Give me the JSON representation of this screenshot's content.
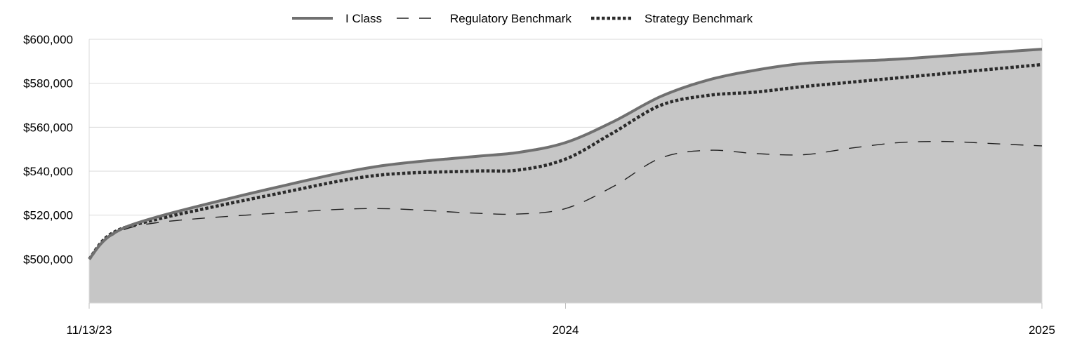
{
  "chart_data": {
    "type": "area",
    "title": "",
    "xlabel": "",
    "ylabel": "",
    "ylim": [
      480000,
      600000
    ],
    "y_ticks": [
      {
        "value": 500000,
        "label": "$500,000"
      },
      {
        "value": 520000,
        "label": "$520,000"
      },
      {
        "value": 540000,
        "label": "$540,000"
      },
      {
        "value": 560000,
        "label": "$560,000"
      },
      {
        "value": 580000,
        "label": "$580,000"
      },
      {
        "value": 600000,
        "label": "$600,000"
      }
    ],
    "x_ticks": [
      {
        "value": 0,
        "label": "11/13/23"
      },
      {
        "value": 0.5,
        "label": "2024"
      },
      {
        "value": 1,
        "label": "2025"
      }
    ],
    "grid": true,
    "legend_position": "top-center",
    "x": [
      0,
      0.023,
      0.07,
      0.2,
      0.3,
      0.4,
      0.45,
      0.5,
      0.55,
      0.6,
      0.65,
      0.7,
      0.75,
      0.8,
      0.85,
      0.9,
      0.95,
      1.0
    ],
    "series": [
      {
        "name": "I Class",
        "style": "solid",
        "color": "#707070",
        "fill": "#c6c6c6",
        "values": [
          500000,
          511000,
          519000,
          533000,
          542000,
          546500,
          548500,
          553000,
          562500,
          574000,
          581500,
          586000,
          589000,
          590000,
          591000,
          592500,
          594000,
          595500
        ]
      },
      {
        "name": "Regulatory Benchmark",
        "style": "dashed",
        "color": "#222222",
        "values": [
          500000,
          510500,
          516500,
          521000,
          523000,
          521000,
          520500,
          523000,
          533000,
          546000,
          549500,
          548000,
          547500,
          550500,
          553000,
          553500,
          552500,
          551500
        ]
      },
      {
        "name": "Strategy Benchmark",
        "style": "dotted",
        "color": "#2b2b2b",
        "values": [
          500000,
          511500,
          518000,
          530000,
          538000,
          540000,
          540500,
          545500,
          557500,
          570000,
          574500,
          576000,
          578500,
          580500,
          582500,
          584500,
          586500,
          588500
        ]
      }
    ]
  }
}
